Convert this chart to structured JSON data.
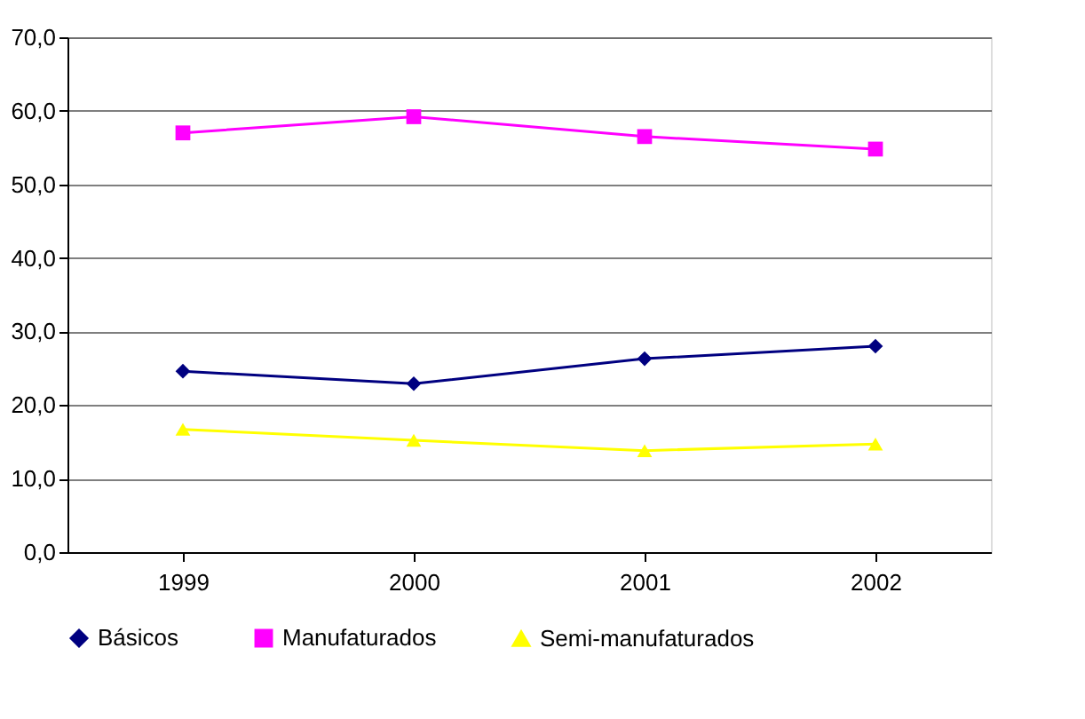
{
  "chart_data": {
    "type": "line",
    "categories": [
      "1999",
      "2000",
      "2001",
      "2002"
    ],
    "series": [
      {
        "name": "Básicos",
        "color": "#000080",
        "marker": "diamond",
        "values": [
          24.6,
          22.9,
          26.3,
          28.0
        ]
      },
      {
        "name": "Manufaturados",
        "color": "#ff00ff",
        "marker": "square",
        "values": [
          57.0,
          59.2,
          56.5,
          54.8
        ]
      },
      {
        "name": "Semi-manufaturados",
        "color": "#ffff00",
        "marker": "triangle",
        "values": [
          16.7,
          15.2,
          13.8,
          14.7
        ]
      }
    ],
    "ylim": [
      0,
      70
    ],
    "yticks": [
      {
        "value": 0,
        "label": "0,0"
      },
      {
        "value": 10,
        "label": "10,0"
      },
      {
        "value": 20,
        "label": "20,0"
      },
      {
        "value": 30,
        "label": "30,0"
      },
      {
        "value": 40,
        "label": "40,0"
      },
      {
        "value": 50,
        "label": "50,0"
      },
      {
        "value": 60,
        "label": "60,0"
      },
      {
        "value": 70,
        "label": "70,0"
      }
    ],
    "grid": "y",
    "legend": "bottom",
    "line_style": "solid"
  }
}
